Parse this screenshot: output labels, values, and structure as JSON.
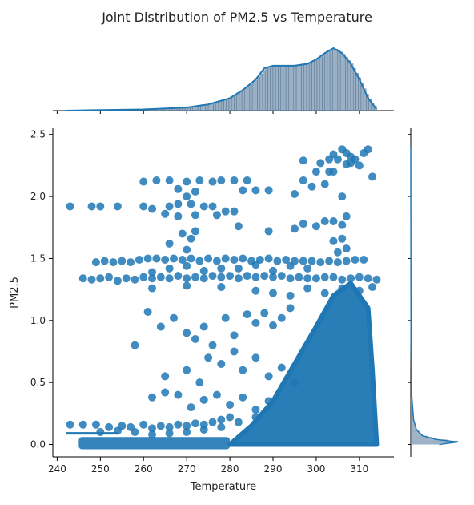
{
  "chart_data": {
    "type": "scatter",
    "title": "Joint Distribution of PM2.5 vs Temperature",
    "xlabel": "Temperature",
    "ylabel": "PM2.5",
    "xlim": [
      239,
      318
    ],
    "ylim": [
      -0.1,
      2.55
    ],
    "xticks": [
      240,
      250,
      260,
      270,
      280,
      290,
      300,
      310
    ],
    "yticks": [
      0.0,
      0.5,
      1.0,
      1.5,
      2.0,
      2.5
    ],
    "xtick_labels": [
      "240",
      "250",
      "260",
      "270",
      "280",
      "290",
      "300",
      "310"
    ],
    "ytick_labels": [
      "0.0",
      "0.5",
      "1.0",
      "1.5",
      "2.0",
      "2.5"
    ],
    "grid": false,
    "color": "#1f77b4",
    "marginal_x": {
      "type": "histogram+kde",
      "x": [
        242,
        250,
        260,
        270,
        275,
        280,
        283,
        286,
        288,
        290,
        292,
        295,
        298,
        300,
        302,
        304,
        306,
        308,
        310,
        312,
        314
      ],
      "density": [
        0.0,
        0.01,
        0.02,
        0.05,
        0.1,
        0.2,
        0.33,
        0.5,
        0.68,
        0.72,
        0.72,
        0.72,
        0.75,
        0.82,
        0.92,
        1.0,
        0.92,
        0.75,
        0.5,
        0.2,
        0.02
      ]
    },
    "marginal_y": {
      "type": "histogram+kde",
      "y": [
        0.0,
        0.02,
        0.04,
        0.07,
        0.12,
        0.2,
        0.4,
        0.8,
        2.4
      ],
      "density": [
        0.6,
        1.0,
        0.55,
        0.25,
        0.12,
        0.06,
        0.02,
        0.005,
        0.0
      ]
    },
    "points": [
      [
        243,
        1.92
      ],
      [
        248,
        1.92
      ],
      [
        250,
        1.92
      ],
      [
        254,
        1.92
      ],
      [
        260,
        1.92
      ],
      [
        262,
        1.9
      ],
      [
        266,
        1.92
      ],
      [
        268,
        1.94
      ],
      [
        271,
        1.94
      ],
      [
        274,
        1.92
      ],
      [
        276,
        1.92
      ],
      [
        279,
        1.88
      ],
      [
        281,
        1.88
      ],
      [
        265,
        1.86
      ],
      [
        268,
        1.84
      ],
      [
        272,
        1.85
      ],
      [
        277,
        1.85
      ],
      [
        269,
        1.7
      ],
      [
        272,
        1.72
      ],
      [
        266,
        1.62
      ],
      [
        270,
        1.57
      ],
      [
        271,
        1.66
      ],
      [
        260,
        2.12
      ],
      [
        263,
        2.13
      ],
      [
        266,
        2.13
      ],
      [
        270,
        2.12
      ],
      [
        273,
        2.13
      ],
      [
        276,
        2.12
      ],
      [
        278,
        2.13
      ],
      [
        281,
        2.13
      ],
      [
        284,
        2.13
      ],
      [
        268,
        2.06
      ],
      [
        272,
        2.04
      ],
      [
        270,
        2.0
      ],
      [
        283,
        2.05
      ],
      [
        286,
        2.05
      ],
      [
        289,
        2.05
      ],
      [
        295,
        2.02
      ],
      [
        297,
        2.13
      ],
      [
        299,
        2.08
      ],
      [
        302,
        2.1
      ],
      [
        304,
        2.2
      ],
      [
        306,
        2.0
      ],
      [
        300,
        2.2
      ],
      [
        303,
        2.3
      ],
      [
        304,
        2.34
      ],
      [
        305,
        2.3
      ],
      [
        306,
        2.38
      ],
      [
        307,
        2.35
      ],
      [
        308,
        2.32
      ],
      [
        309,
        2.3
      ],
      [
        310,
        2.25
      ],
      [
        311,
        2.35
      ],
      [
        312,
        2.38
      ],
      [
        313,
        2.16
      ],
      [
        307,
        2.26
      ],
      [
        308,
        2.27
      ],
      [
        297,
        2.29
      ],
      [
        301,
        2.27
      ],
      [
        303,
        2.2
      ],
      [
        282,
        1.76
      ],
      [
        289,
        1.72
      ],
      [
        295,
        1.74
      ],
      [
        297,
        1.78
      ],
      [
        300,
        1.76
      ],
      [
        302,
        1.8
      ],
      [
        304,
        1.8
      ],
      [
        306,
        1.77
      ],
      [
        307,
        1.84
      ],
      [
        306,
        1.66
      ],
      [
        304,
        1.64
      ],
      [
        305,
        1.55
      ],
      [
        307,
        1.58
      ],
      [
        246,
        1.34
      ],
      [
        248,
        1.33
      ],
      [
        250,
        1.34
      ],
      [
        252,
        1.35
      ],
      [
        254,
        1.32
      ],
      [
        256,
        1.34
      ],
      [
        258,
        1.33
      ],
      [
        260,
        1.35
      ],
      [
        262,
        1.34
      ],
      [
        264,
        1.35
      ],
      [
        266,
        1.34
      ],
      [
        268,
        1.36
      ],
      [
        270,
        1.34
      ],
      [
        272,
        1.35
      ],
      [
        274,
        1.34
      ],
      [
        276,
        1.36
      ],
      [
        278,
        1.35
      ],
      [
        280,
        1.36
      ],
      [
        282,
        1.34
      ],
      [
        284,
        1.36
      ],
      [
        286,
        1.35
      ],
      [
        288,
        1.36
      ],
      [
        290,
        1.35
      ],
      [
        292,
        1.36
      ],
      [
        294,
        1.34
      ],
      [
        296,
        1.35
      ],
      [
        298,
        1.34
      ],
      [
        300,
        1.34
      ],
      [
        302,
        1.35
      ],
      [
        304,
        1.35
      ],
      [
        306,
        1.33
      ],
      [
        308,
        1.34
      ],
      [
        310,
        1.35
      ],
      [
        312,
        1.34
      ],
      [
        314,
        1.33
      ],
      [
        249,
        1.47
      ],
      [
        251,
        1.48
      ],
      [
        253,
        1.47
      ],
      [
        255,
        1.48
      ],
      [
        257,
        1.47
      ],
      [
        259,
        1.49
      ],
      [
        261,
        1.5
      ],
      [
        263,
        1.5
      ],
      [
        265,
        1.49
      ],
      [
        267,
        1.5
      ],
      [
        269,
        1.49
      ],
      [
        271,
        1.5
      ],
      [
        273,
        1.48
      ],
      [
        275,
        1.5
      ],
      [
        277,
        1.48
      ],
      [
        279,
        1.5
      ],
      [
        281,
        1.49
      ],
      [
        283,
        1.5
      ],
      [
        285,
        1.48
      ],
      [
        287,
        1.49
      ],
      [
        289,
        1.5
      ],
      [
        291,
        1.48
      ],
      [
        293,
        1.49
      ],
      [
        295,
        1.48
      ],
      [
        297,
        1.48
      ],
      [
        299,
        1.48
      ],
      [
        301,
        1.47
      ],
      [
        303,
        1.48
      ],
      [
        305,
        1.47
      ],
      [
        307,
        1.48
      ],
      [
        309,
        1.49
      ],
      [
        311,
        1.49
      ],
      [
        262,
        1.39
      ],
      [
        266,
        1.42
      ],
      [
        270,
        1.44
      ],
      [
        274,
        1.4
      ],
      [
        278,
        1.42
      ],
      [
        282,
        1.42
      ],
      [
        286,
        1.45
      ],
      [
        290,
        1.4
      ],
      [
        294,
        1.44
      ],
      [
        298,
        1.42
      ],
      [
        262,
        1.26
      ],
      [
        270,
        1.28
      ],
      [
        278,
        1.27
      ],
      [
        286,
        1.24
      ],
      [
        290,
        1.22
      ],
      [
        294,
        1.2
      ],
      [
        298,
        1.26
      ],
      [
        302,
        1.22
      ],
      [
        306,
        1.26
      ],
      [
        310,
        1.24
      ],
      [
        313,
        1.27
      ],
      [
        261,
        1.07
      ],
      [
        258,
        0.8
      ],
      [
        264,
        0.95
      ],
      [
        267,
        1.02
      ],
      [
        270,
        0.9
      ],
      [
        272,
        0.85
      ],
      [
        274,
        0.95
      ],
      [
        276,
        0.8
      ],
      [
        279,
        1.02
      ],
      [
        281,
        0.88
      ],
      [
        284,
        1.05
      ],
      [
        286,
        0.98
      ],
      [
        288,
        1.06
      ],
      [
        290,
        0.96
      ],
      [
        292,
        1.02
      ],
      [
        294,
        1.1
      ],
      [
        275,
        0.7
      ],
      [
        278,
        0.65
      ],
      [
        281,
        0.75
      ],
      [
        283,
        0.6
      ],
      [
        286,
        0.7
      ],
      [
        289,
        0.55
      ],
      [
        292,
        0.62
      ],
      [
        295,
        0.5
      ],
      [
        265,
        0.55
      ],
      [
        270,
        0.6
      ],
      [
        273,
        0.5
      ],
      [
        262,
        0.38
      ],
      [
        265,
        0.42
      ],
      [
        268,
        0.4
      ],
      [
        271,
        0.3
      ],
      [
        274,
        0.36
      ],
      [
        277,
        0.4
      ],
      [
        280,
        0.32
      ],
      [
        283,
        0.38
      ],
      [
        286,
        0.28
      ],
      [
        289,
        0.35
      ],
      [
        243,
        0.16
      ],
      [
        246,
        0.16
      ],
      [
        249,
        0.16
      ],
      [
        252,
        0.14
      ],
      [
        255,
        0.15
      ],
      [
        257,
        0.14
      ],
      [
        260,
        0.16
      ],
      [
        262,
        0.13
      ],
      [
        264,
        0.15
      ],
      [
        266,
        0.14
      ],
      [
        268,
        0.16
      ],
      [
        270,
        0.15
      ],
      [
        272,
        0.17
      ],
      [
        274,
        0.16
      ],
      [
        276,
        0.18
      ],
      [
        278,
        0.2
      ],
      [
        280,
        0.22
      ],
      [
        250,
        0.1
      ],
      [
        254,
        0.11
      ],
      [
        258,
        0.1
      ],
      [
        262,
        0.08
      ],
      [
        266,
        0.09
      ],
      [
        270,
        0.1
      ],
      [
        274,
        0.12
      ],
      [
        278,
        0.14
      ],
      [
        282,
        0.18
      ],
      [
        286,
        0.22
      ]
    ],
    "dense_region": {
      "description": "",
      "polygon": [
        [
          280,
          0.0
        ],
        [
          285,
          0.15
        ],
        [
          290,
          0.35
        ],
        [
          295,
          0.65
        ],
        [
          300,
          0.95
        ],
        [
          304,
          1.2
        ],
        [
          308,
          1.3
        ],
        [
          312,
          1.1
        ],
        [
          313,
          0.6
        ],
        [
          314,
          0.0
        ]
      ]
    },
    "low_band": {
      "x_range": [
        245,
        280
      ],
      "y_range": [
        0.0,
        0.06
      ]
    },
    "regression_line": {
      "x": [
        242,
        254
      ],
      "y": [
        0.09,
        0.09
      ]
    }
  }
}
